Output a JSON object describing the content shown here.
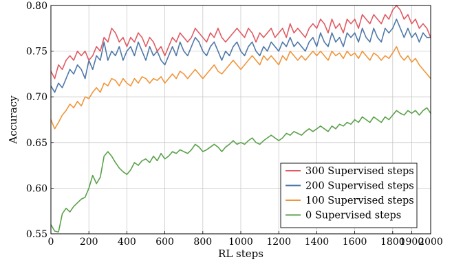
{
  "chart_data": {
    "type": "line",
    "xlabel": "RL steps",
    "ylabel": "Accuracy",
    "xlim": [
      0,
      2000
    ],
    "ylim": [
      0.55,
      0.8
    ],
    "xticks": [
      0,
      200,
      400,
      600,
      800,
      1000,
      1200,
      1400,
      1600,
      1800,
      1900,
      2000
    ],
    "xtick_labels": [
      "0",
      "200",
      "400",
      "600",
      "800",
      "1000",
      "1200",
      "1400",
      "1600",
      "1800",
      "1900",
      "2000"
    ],
    "yticks": [
      0.55,
      0.6,
      0.65,
      0.7,
      0.75,
      0.8
    ],
    "ytick_labels": [
      "0.55",
      "0.60",
      "0.65",
      "0.70",
      "0.75",
      "0.80"
    ],
    "grid": true,
    "legend_position": "bottom-right",
    "series": [
      {
        "name": "300 Supervised steps",
        "color": "#e05a62",
        "x": [
          0,
          20,
          40,
          60,
          80,
          100,
          120,
          140,
          160,
          180,
          200,
          220,
          240,
          260,
          280,
          300,
          320,
          340,
          360,
          380,
          400,
          420,
          440,
          460,
          480,
          500,
          520,
          540,
          560,
          580,
          600,
          620,
          640,
          660,
          680,
          700,
          720,
          740,
          760,
          780,
          800,
          820,
          840,
          860,
          880,
          900,
          920,
          940,
          960,
          980,
          1000,
          1020,
          1040,
          1060,
          1080,
          1100,
          1120,
          1140,
          1160,
          1180,
          1200,
          1220,
          1240,
          1260,
          1280,
          1300,
          1320,
          1340,
          1360,
          1380,
          1400,
          1420,
          1440,
          1460,
          1480,
          1500,
          1520,
          1540,
          1560,
          1580,
          1600,
          1620,
          1640,
          1660,
          1680,
          1700,
          1720,
          1740,
          1760,
          1780,
          1800,
          1820,
          1840,
          1860,
          1880,
          1900,
          1920,
          1940,
          1960,
          1980,
          2000
        ],
        "values": [
          0.728,
          0.72,
          0.735,
          0.73,
          0.74,
          0.745,
          0.74,
          0.75,
          0.745,
          0.75,
          0.74,
          0.745,
          0.755,
          0.75,
          0.765,
          0.76,
          0.775,
          0.77,
          0.76,
          0.765,
          0.755,
          0.765,
          0.76,
          0.77,
          0.765,
          0.755,
          0.765,
          0.76,
          0.75,
          0.755,
          0.745,
          0.755,
          0.765,
          0.76,
          0.77,
          0.765,
          0.76,
          0.765,
          0.775,
          0.77,
          0.765,
          0.76,
          0.77,
          0.765,
          0.775,
          0.765,
          0.76,
          0.765,
          0.77,
          0.775,
          0.77,
          0.765,
          0.775,
          0.77,
          0.76,
          0.77,
          0.765,
          0.77,
          0.775,
          0.765,
          0.77,
          0.775,
          0.765,
          0.78,
          0.77,
          0.775,
          0.77,
          0.765,
          0.775,
          0.78,
          0.775,
          0.785,
          0.78,
          0.77,
          0.785,
          0.775,
          0.78,
          0.77,
          0.785,
          0.78,
          0.785,
          0.775,
          0.79,
          0.785,
          0.78,
          0.79,
          0.785,
          0.78,
          0.79,
          0.785,
          0.795,
          0.8,
          0.795,
          0.785,
          0.79,
          0.78,
          0.785,
          0.775,
          0.78,
          0.775,
          0.765
        ]
      },
      {
        "name": "200 Supervised steps",
        "color": "#4f78a8",
        "x": [
          0,
          20,
          40,
          60,
          80,
          100,
          120,
          140,
          160,
          180,
          200,
          220,
          240,
          260,
          280,
          300,
          320,
          340,
          360,
          380,
          400,
          420,
          440,
          460,
          480,
          500,
          520,
          540,
          560,
          580,
          600,
          620,
          640,
          660,
          680,
          700,
          720,
          740,
          760,
          780,
          800,
          820,
          840,
          860,
          880,
          900,
          920,
          940,
          960,
          980,
          1000,
          1020,
          1040,
          1060,
          1080,
          1100,
          1120,
          1140,
          1160,
          1180,
          1200,
          1220,
          1240,
          1260,
          1280,
          1300,
          1320,
          1340,
          1360,
          1380,
          1400,
          1420,
          1440,
          1460,
          1480,
          1500,
          1520,
          1540,
          1560,
          1580,
          1600,
          1620,
          1640,
          1660,
          1680,
          1700,
          1720,
          1740,
          1760,
          1780,
          1800,
          1820,
          1840,
          1860,
          1880,
          1900,
          1920,
          1940,
          1960,
          1980,
          2000
        ],
        "values": [
          0.712,
          0.705,
          0.715,
          0.71,
          0.72,
          0.73,
          0.725,
          0.735,
          0.73,
          0.72,
          0.74,
          0.73,
          0.745,
          0.74,
          0.76,
          0.74,
          0.75,
          0.745,
          0.755,
          0.74,
          0.75,
          0.755,
          0.745,
          0.76,
          0.75,
          0.74,
          0.755,
          0.745,
          0.75,
          0.74,
          0.735,
          0.745,
          0.755,
          0.745,
          0.76,
          0.75,
          0.745,
          0.755,
          0.765,
          0.76,
          0.75,
          0.745,
          0.755,
          0.76,
          0.75,
          0.74,
          0.75,
          0.745,
          0.755,
          0.76,
          0.75,
          0.745,
          0.755,
          0.76,
          0.75,
          0.745,
          0.755,
          0.75,
          0.76,
          0.755,
          0.75,
          0.76,
          0.755,
          0.765,
          0.755,
          0.76,
          0.755,
          0.75,
          0.76,
          0.765,
          0.755,
          0.77,
          0.76,
          0.755,
          0.77,
          0.76,
          0.765,
          0.755,
          0.77,
          0.765,
          0.77,
          0.76,
          0.775,
          0.765,
          0.76,
          0.775,
          0.765,
          0.76,
          0.775,
          0.77,
          0.775,
          0.785,
          0.775,
          0.765,
          0.775,
          0.765,
          0.77,
          0.76,
          0.77,
          0.765,
          0.765
        ]
      },
      {
        "name": "100 Supervised steps",
        "color": "#f0953a",
        "x": [
          0,
          20,
          40,
          60,
          80,
          100,
          120,
          140,
          160,
          180,
          200,
          220,
          240,
          260,
          280,
          300,
          320,
          340,
          360,
          380,
          400,
          420,
          440,
          460,
          480,
          500,
          520,
          540,
          560,
          580,
          600,
          620,
          640,
          660,
          680,
          700,
          720,
          740,
          760,
          780,
          800,
          820,
          840,
          860,
          880,
          900,
          920,
          940,
          960,
          980,
          1000,
          1020,
          1040,
          1060,
          1080,
          1100,
          1120,
          1140,
          1160,
          1180,
          1200,
          1220,
          1240,
          1260,
          1280,
          1300,
          1320,
          1340,
          1360,
          1380,
          1400,
          1420,
          1440,
          1460,
          1480,
          1500,
          1520,
          1540,
          1560,
          1580,
          1600,
          1620,
          1640,
          1660,
          1680,
          1700,
          1720,
          1740,
          1760,
          1780,
          1800,
          1820,
          1840,
          1860,
          1880,
          1900,
          1920,
          1940,
          1960,
          1980,
          2000
        ],
        "values": [
          0.675,
          0.665,
          0.672,
          0.68,
          0.685,
          0.692,
          0.688,
          0.695,
          0.69,
          0.7,
          0.698,
          0.705,
          0.71,
          0.705,
          0.715,
          0.712,
          0.72,
          0.718,
          0.712,
          0.72,
          0.715,
          0.712,
          0.72,
          0.715,
          0.722,
          0.72,
          0.715,
          0.72,
          0.718,
          0.722,
          0.715,
          0.72,
          0.725,
          0.72,
          0.728,
          0.725,
          0.72,
          0.725,
          0.73,
          0.725,
          0.72,
          0.725,
          0.73,
          0.735,
          0.728,
          0.725,
          0.73,
          0.735,
          0.74,
          0.735,
          0.73,
          0.735,
          0.74,
          0.745,
          0.74,
          0.735,
          0.745,
          0.74,
          0.745,
          0.74,
          0.735,
          0.745,
          0.74,
          0.75,
          0.745,
          0.74,
          0.745,
          0.74,
          0.745,
          0.75,
          0.745,
          0.75,
          0.745,
          0.74,
          0.75,
          0.745,
          0.748,
          0.742,
          0.75,
          0.745,
          0.748,
          0.742,
          0.75,
          0.745,
          0.74,
          0.748,
          0.745,
          0.74,
          0.745,
          0.742,
          0.748,
          0.755,
          0.745,
          0.74,
          0.745,
          0.738,
          0.742,
          0.735,
          0.73,
          0.725,
          0.72
        ]
      },
      {
        "name": "0 Supervised steps",
        "color": "#5aa14a",
        "x": [
          0,
          20,
          40,
          60,
          80,
          100,
          120,
          140,
          160,
          180,
          200,
          220,
          240,
          260,
          280,
          300,
          320,
          340,
          360,
          380,
          400,
          420,
          440,
          460,
          480,
          500,
          520,
          540,
          560,
          580,
          600,
          620,
          640,
          660,
          680,
          700,
          720,
          740,
          760,
          780,
          800,
          820,
          840,
          860,
          880,
          900,
          920,
          940,
          960,
          980,
          1000,
          1020,
          1040,
          1060,
          1080,
          1100,
          1120,
          1140,
          1160,
          1180,
          1200,
          1220,
          1240,
          1260,
          1280,
          1300,
          1320,
          1340,
          1360,
          1380,
          1400,
          1420,
          1440,
          1460,
          1480,
          1500,
          1520,
          1540,
          1560,
          1580,
          1600,
          1620,
          1640,
          1660,
          1680,
          1700,
          1720,
          1740,
          1760,
          1780,
          1800,
          1820,
          1840,
          1860,
          1880,
          1900,
          1920,
          1940,
          1960,
          1980,
          2000
        ],
        "values": [
          0.56,
          0.553,
          0.552,
          0.572,
          0.578,
          0.574,
          0.58,
          0.584,
          0.588,
          0.59,
          0.6,
          0.614,
          0.605,
          0.612,
          0.635,
          0.64,
          0.635,
          0.628,
          0.622,
          0.618,
          0.615,
          0.62,
          0.628,
          0.625,
          0.63,
          0.632,
          0.628,
          0.635,
          0.63,
          0.638,
          0.632,
          0.635,
          0.64,
          0.638,
          0.642,
          0.64,
          0.638,
          0.642,
          0.648,
          0.645,
          0.64,
          0.642,
          0.645,
          0.648,
          0.645,
          0.64,
          0.645,
          0.648,
          0.652,
          0.648,
          0.65,
          0.648,
          0.652,
          0.655,
          0.65,
          0.648,
          0.652,
          0.655,
          0.658,
          0.655,
          0.652,
          0.655,
          0.66,
          0.658,
          0.662,
          0.66,
          0.658,
          0.662,
          0.665,
          0.662,
          0.665,
          0.668,
          0.665,
          0.662,
          0.668,
          0.665,
          0.67,
          0.668,
          0.672,
          0.67,
          0.675,
          0.672,
          0.678,
          0.675,
          0.672,
          0.678,
          0.675,
          0.672,
          0.678,
          0.675,
          0.68,
          0.685,
          0.682,
          0.68,
          0.685,
          0.682,
          0.685,
          0.68,
          0.685,
          0.688,
          0.682
        ]
      }
    ]
  }
}
